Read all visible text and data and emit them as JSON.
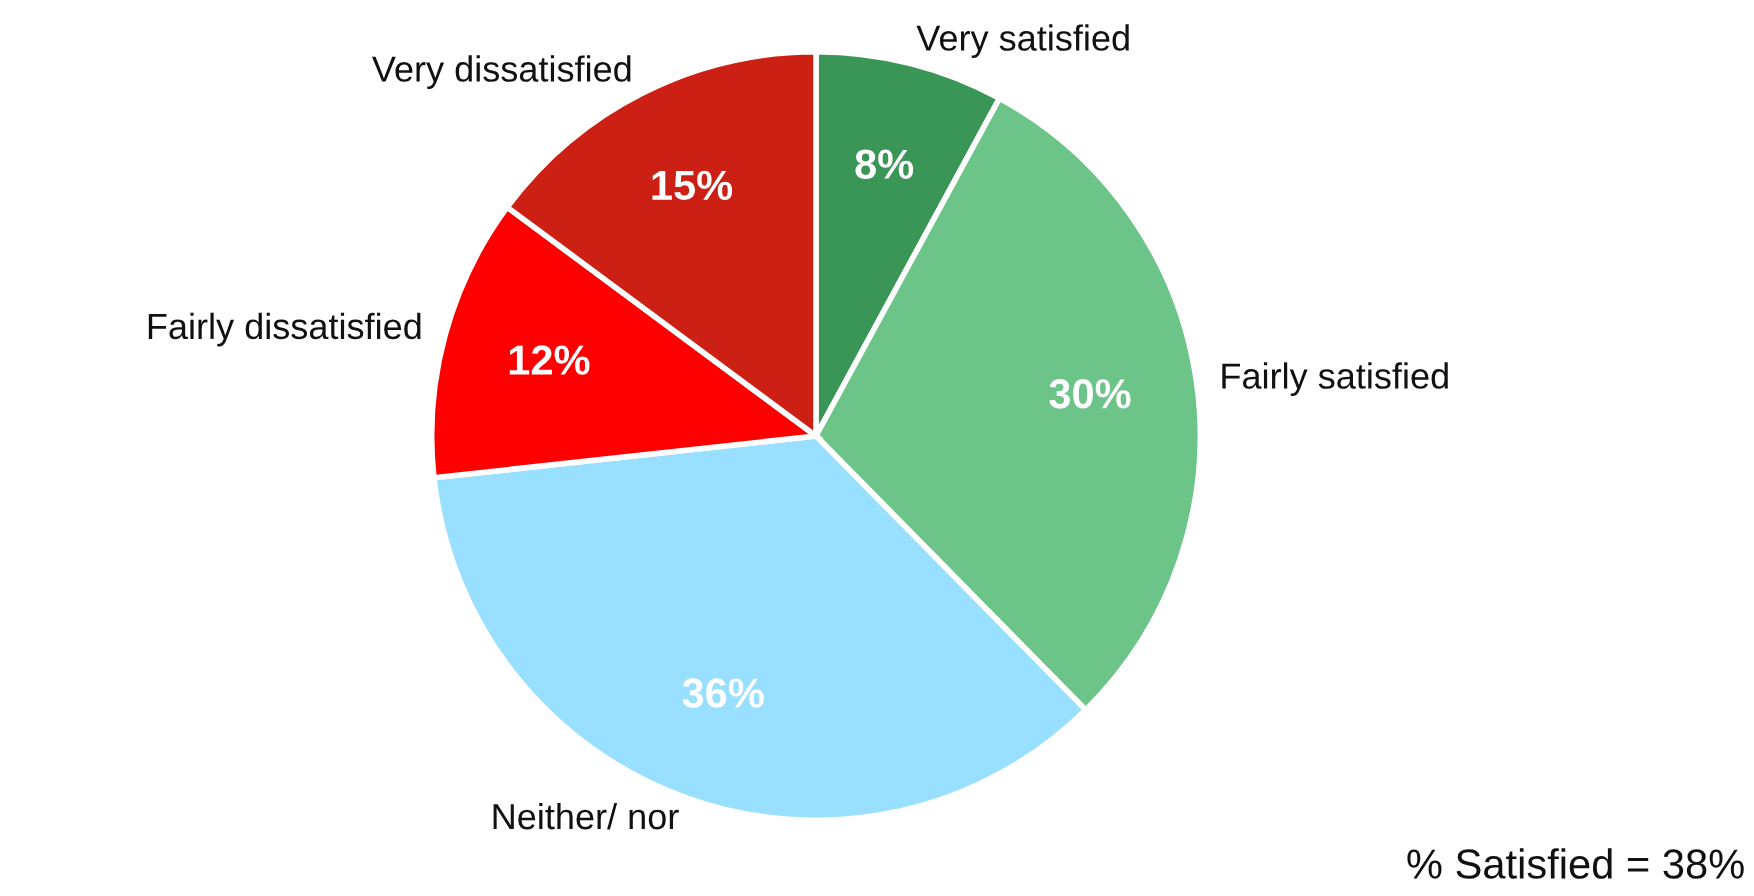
{
  "chart_data": {
    "type": "pie",
    "categories": [
      "Very satisfied",
      "Fairly satisfied",
      "Neither/ nor",
      "Fairly dissatisfied",
      "Very dissatisfied"
    ],
    "values": [
      8,
      30,
      36,
      12,
      15
    ],
    "colors": [
      "#3a9657",
      "#6cc488",
      "#99dfff",
      "#fe0000",
      "#cc2014"
    ],
    "value_labels": [
      "8%",
      "30%",
      "36%",
      "12%",
      "15%"
    ],
    "annotations": [
      "% Satisfied = 38%"
    ],
    "legend": false
  }
}
